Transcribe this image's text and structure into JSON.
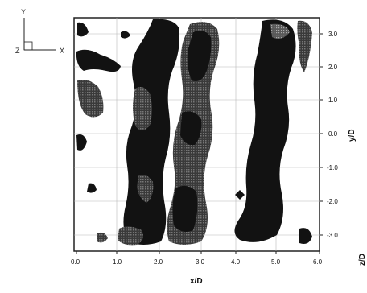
{
  "triad": {
    "y_label": "Y",
    "x_label": "X",
    "z_label": "Z"
  },
  "x_axis": {
    "title": "x/D",
    "ticks": [
      "0.0",
      "1.0",
      "2.0",
      "3.0",
      "4.0",
      "5.0",
      "6.0"
    ]
  },
  "y_axis": {
    "title": "y/D",
    "ticks": [
      "3.0",
      "2.0",
      "1.0",
      "0.0",
      "-1.0",
      "-2.0",
      "-3.0"
    ]
  },
  "z_axis": {
    "title": "z/D"
  },
  "colors": {
    "structure": "#121212",
    "structure_shaded": "#454545",
    "grid": "#b8b8b8",
    "frame": "#222222"
  }
}
